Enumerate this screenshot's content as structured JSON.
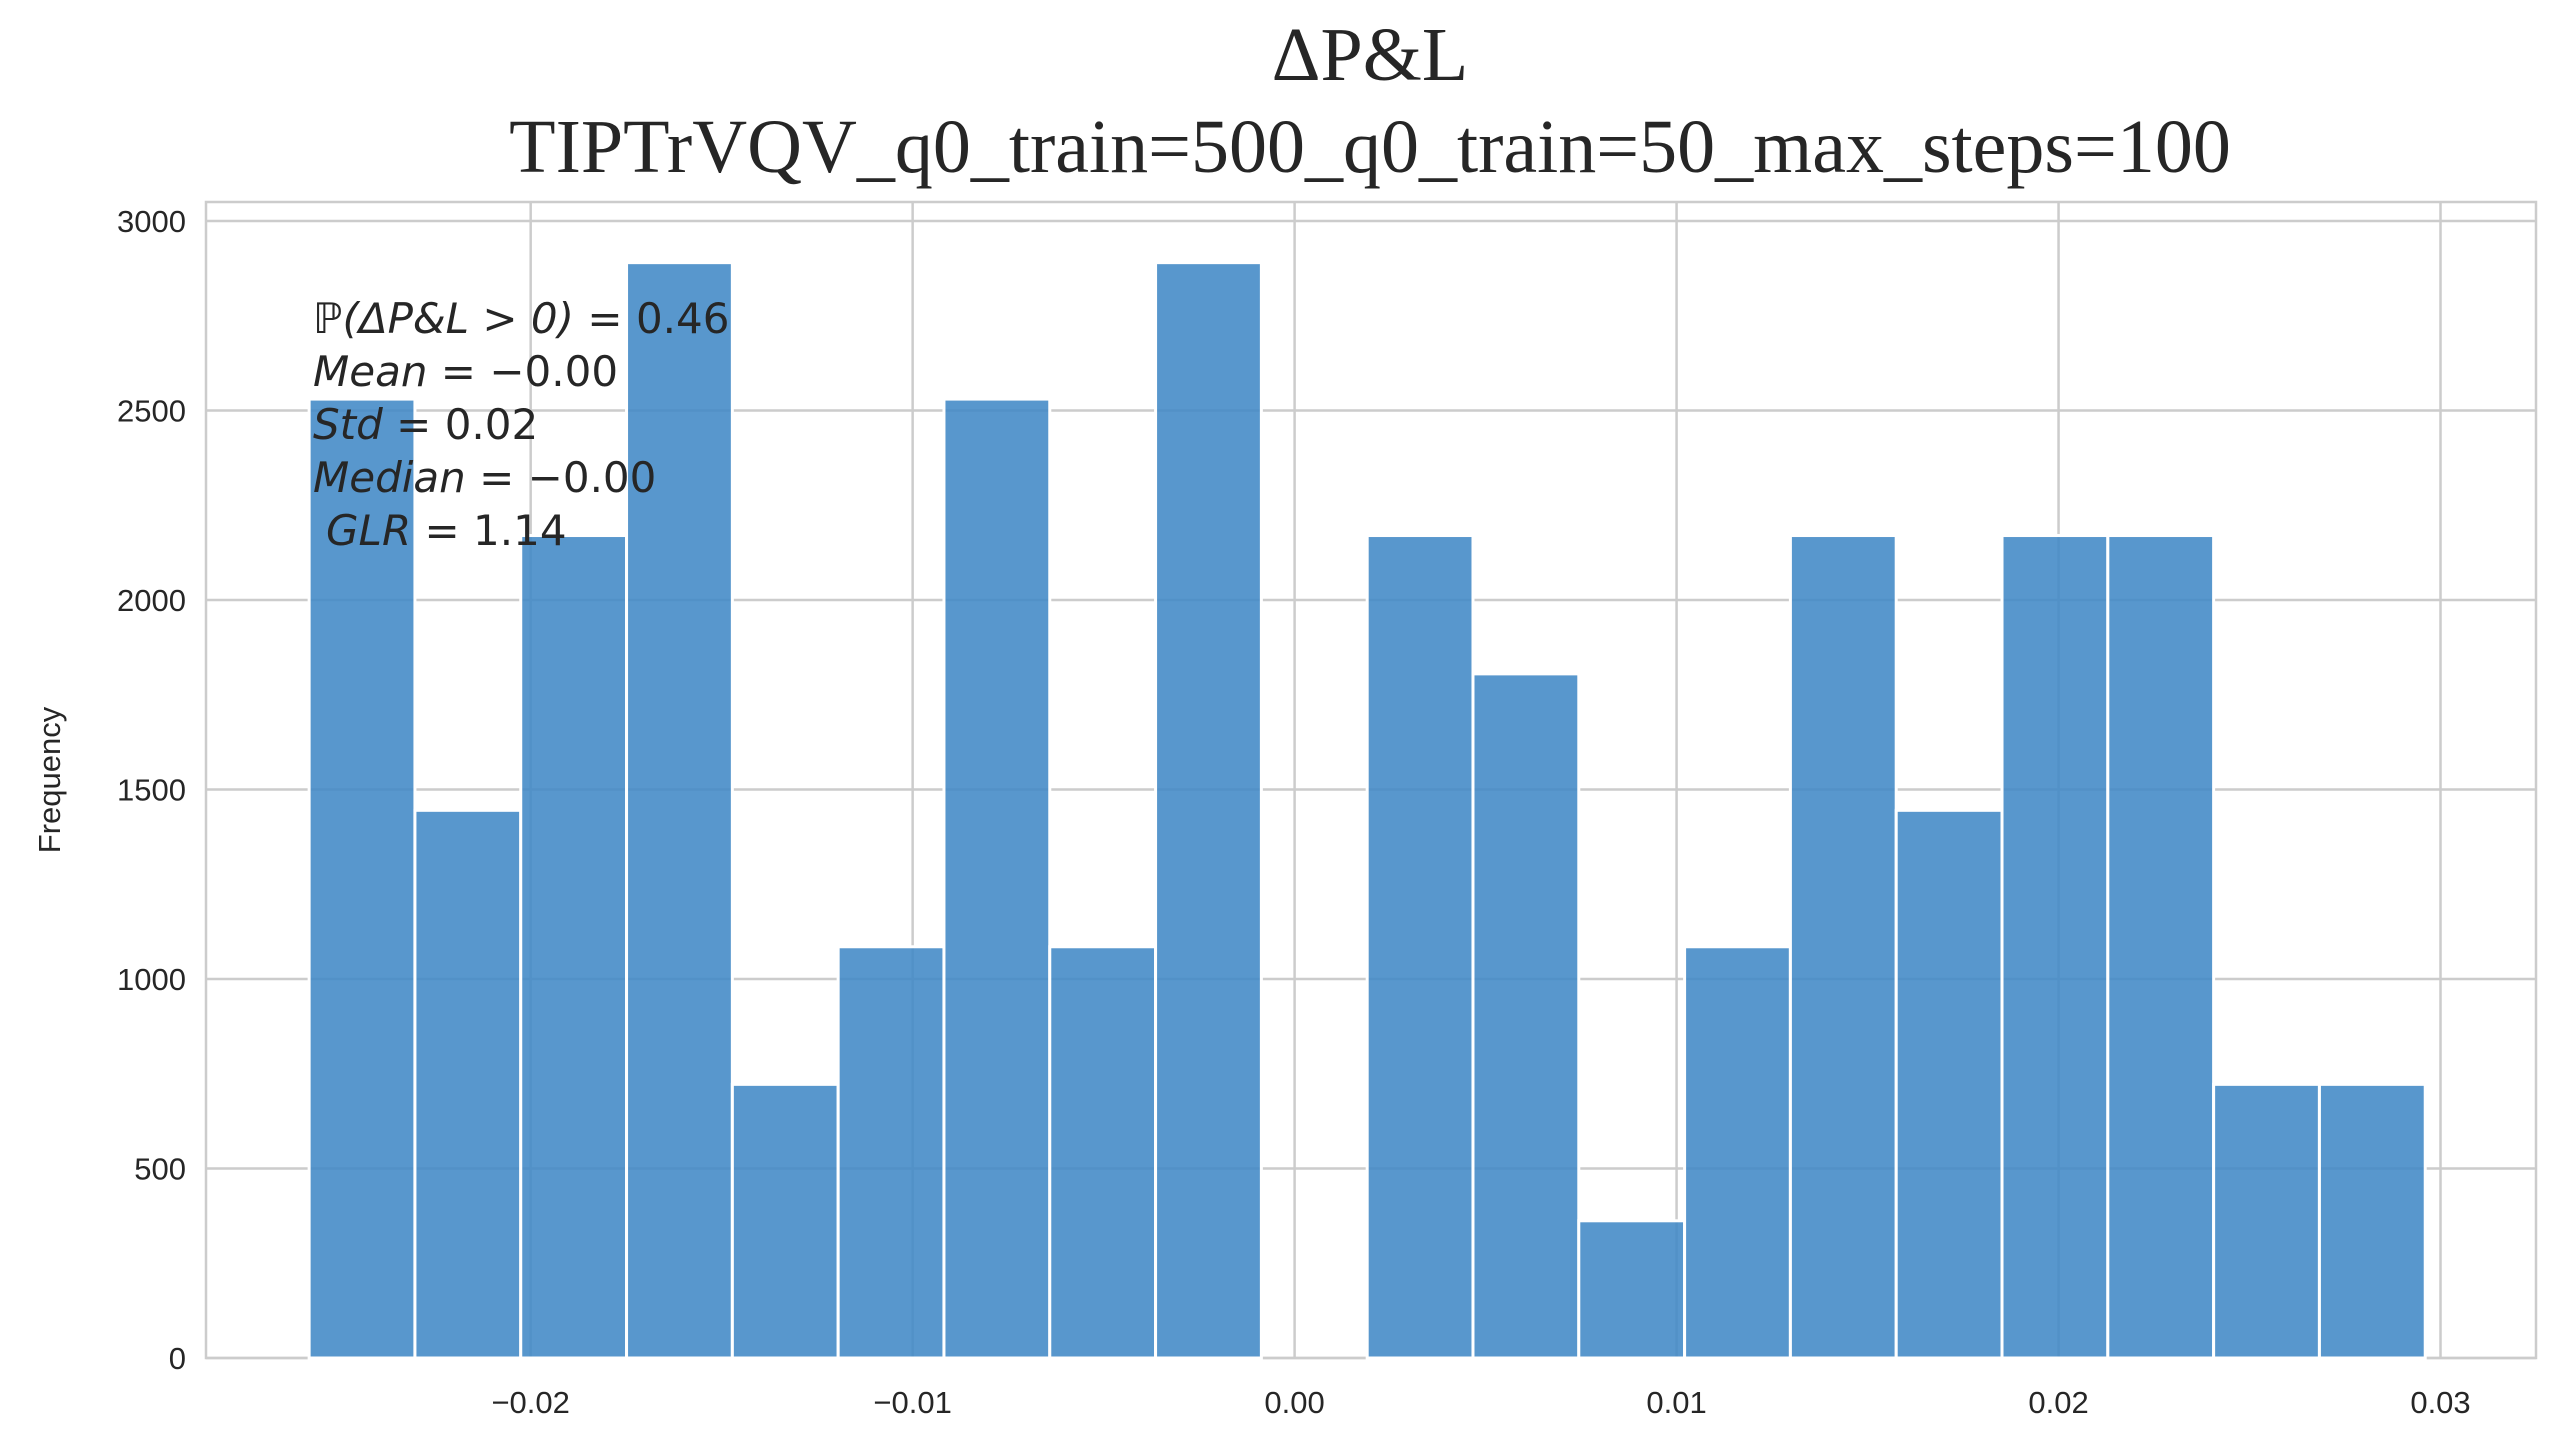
{
  "chart_data": {
    "type": "bar",
    "title": "ΔP&L",
    "subtitle": "TIPTrVQV_q0_train=500_q0_train=50_max_steps=100",
    "xlabel": "",
    "ylabel": "Frequency",
    "xlim": [
      -0.0285,
      0.0325
    ],
    "ylim": [
      0,
      3050
    ],
    "grid": true,
    "bar_color": "#3f88c5",
    "grid_color": "#cccccc",
    "xticks": [
      -0.02,
      -0.01,
      0.0,
      0.01,
      0.02,
      0.03
    ],
    "xtick_labels": [
      "−0.02",
      "−0.01",
      "0.00",
      "0.01",
      "0.02",
      "0.03"
    ],
    "yticks": [
      0,
      500,
      1000,
      1500,
      2000,
      2500,
      3000
    ],
    "ytick_labels": [
      "0",
      "500",
      "1000",
      "1500",
      "2000",
      "2500",
      "3000"
    ],
    "bin_start": -0.0258,
    "bin_width": 0.00277,
    "values": [
      2530,
      1445,
      2170,
      2890,
      722,
      1085,
      2530,
      1085,
      2890,
      0,
      2170,
      1805,
      362,
      1085,
      2170,
      1445,
      2170,
      2170,
      722,
      722
    ],
    "annotations": [
      {
        "prefix": "ℙ(ΔP&L > 0)",
        "value": "0.46"
      },
      {
        "prefix": "Mean",
        "value": "−0.00"
      },
      {
        "prefix": "Std",
        "value": "0.02"
      },
      {
        "prefix": "Median",
        "value": "−0.00"
      },
      {
        "prefix": "GLR",
        "value": "1.14"
      }
    ]
  }
}
